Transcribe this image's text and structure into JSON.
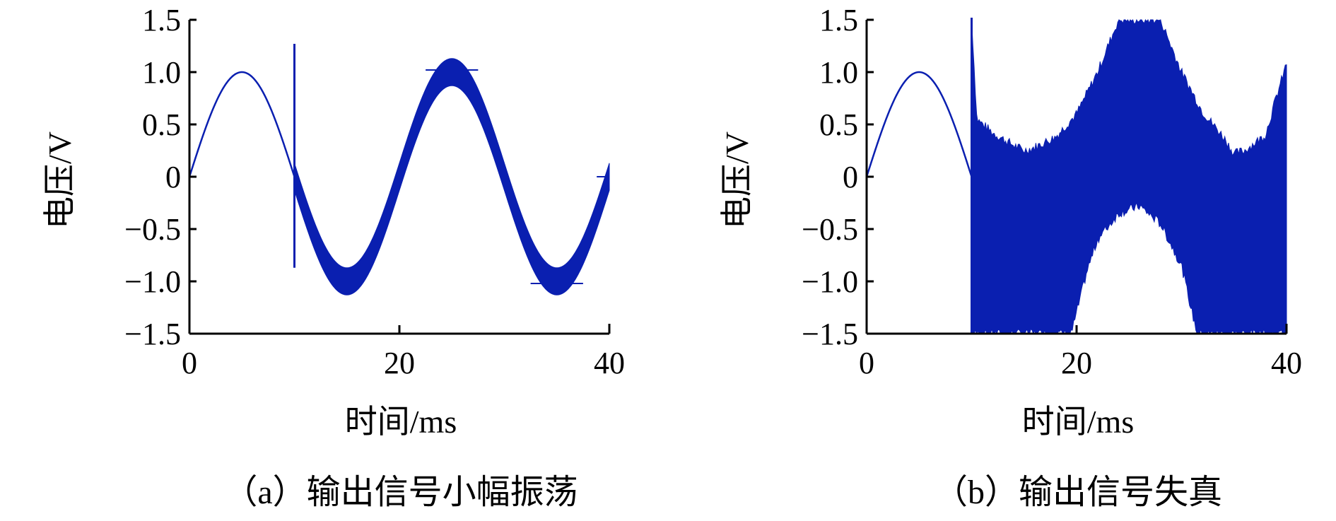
{
  "colors": {
    "signal": "#0a1fb0",
    "axis": "#000000",
    "background": "#ffffff"
  },
  "chart_data": [
    {
      "type": "line",
      "caption": "（a）输出信号小幅振荡",
      "xlabel": "时间/ms",
      "ylabel": "电压/V",
      "xlim": [
        0,
        40
      ],
      "ylim": [
        -1.5,
        1.5
      ],
      "xticks": [
        0,
        20,
        40
      ],
      "xtick_labels": [
        "0",
        "20",
        "40"
      ],
      "yticks": [
        1.5,
        1.0,
        0.5,
        0,
        -0.5,
        -1.0,
        -1.5
      ],
      "ytick_labels": [
        "1.5",
        "1.0",
        "0.5",
        "0",
        "−0.5",
        "−1.0",
        "−1.5"
      ],
      "grid": false,
      "series": [
        {
          "frequency_hz": 50,
          "amplitude_v": 1.0,
          "disturbance_time_ms": 10,
          "disturbance_spike_v": [
            -0.87,
            1.27
          ],
          "oscillation_envelope_v": 0.13,
          "end_time_ms": 40
        }
      ]
    },
    {
      "type": "line",
      "caption": "（b）输出信号失真",
      "xlabel": "时间/ms",
      "ylabel": "电压/V",
      "xlim": [
        0,
        40
      ],
      "ylim": [
        -1.5,
        1.5
      ],
      "xticks": [
        0,
        20,
        40
      ],
      "xtick_labels": [
        "0",
        "20",
        "40"
      ],
      "yticks": [
        1.5,
        1.0,
        0.5,
        0,
        -0.5,
        -1.0,
        -1.5
      ],
      "ytick_labels": [
        "1.5",
        "1.0",
        "0.5",
        "0",
        "−0.5",
        "−1.0",
        "−1.5"
      ],
      "grid": false,
      "series": [
        {
          "frequency_hz": 50,
          "amplitude_v": 1.0,
          "disturbance_time_ms": 10,
          "distortion_upper_v": [
            [
              10,
              1.52
            ],
            [
              10.5,
              0.55
            ],
            [
              12,
              0.42
            ],
            [
              14,
              0.3
            ],
            [
              15,
              0.25
            ],
            [
              16,
              0.28
            ],
            [
              18,
              0.38
            ],
            [
              20,
              0.6
            ],
            [
              22,
              1.0
            ],
            [
              24,
              1.5
            ],
            [
              28,
              1.5
            ],
            [
              30,
              1.0
            ],
            [
              32,
              0.62
            ],
            [
              34,
              0.38
            ],
            [
              35,
              0.22
            ],
            [
              36,
              0.25
            ],
            [
              38,
              0.4
            ],
            [
              39,
              0.75
            ],
            [
              40,
              1.08
            ]
          ],
          "distortion_lower_v": [
            [
              10,
              -1.5
            ],
            [
              19.5,
              -1.5
            ],
            [
              20,
              -1.3
            ],
            [
              21,
              -0.9
            ],
            [
              22,
              -0.6
            ],
            [
              24,
              -0.35
            ],
            [
              26,
              -0.28
            ],
            [
              28,
              -0.45
            ],
            [
              30,
              -0.85
            ],
            [
              31,
              -1.3
            ],
            [
              31.5,
              -1.5
            ],
            [
              40,
              -1.5
            ]
          ],
          "end_time_ms": 40
        }
      ]
    }
  ]
}
